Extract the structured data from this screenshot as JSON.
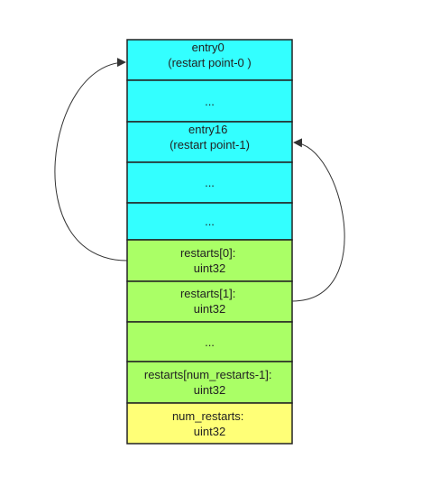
{
  "colors": {
    "entry_fill": "#33ffff",
    "restart_fill": "#aaff66",
    "num_fill": "#ffff77",
    "border": "#222222",
    "arrow": "#333333"
  },
  "blocks": [
    {
      "kind": "entry",
      "lines": [
        "entry0",
        "(restart point-0 )"
      ]
    },
    {
      "kind": "entry",
      "lines": [
        "..."
      ]
    },
    {
      "kind": "entry",
      "lines": [
        "entry16",
        "(restart point-1)"
      ]
    },
    {
      "kind": "entry",
      "lines": [
        "..."
      ]
    },
    {
      "kind": "entry",
      "lines": [
        "..."
      ]
    },
    {
      "kind": "restart",
      "lines": [
        "restarts[0]:",
        "uint32"
      ]
    },
    {
      "kind": "restart",
      "lines": [
        "restarts[1]:",
        "uint32"
      ]
    },
    {
      "kind": "restart",
      "lines": [
        "..."
      ]
    },
    {
      "kind": "restart",
      "lines": [
        "restarts[num_restarts-1]:",
        "uint32"
      ]
    },
    {
      "kind": "num",
      "lines": [
        "num_restarts:",
        "uint32"
      ]
    }
  ],
  "arrows": [
    {
      "from_block": 5,
      "to_block": 0,
      "side": "left"
    },
    {
      "from_block": 6,
      "to_block": 2,
      "side": "right"
    }
  ]
}
